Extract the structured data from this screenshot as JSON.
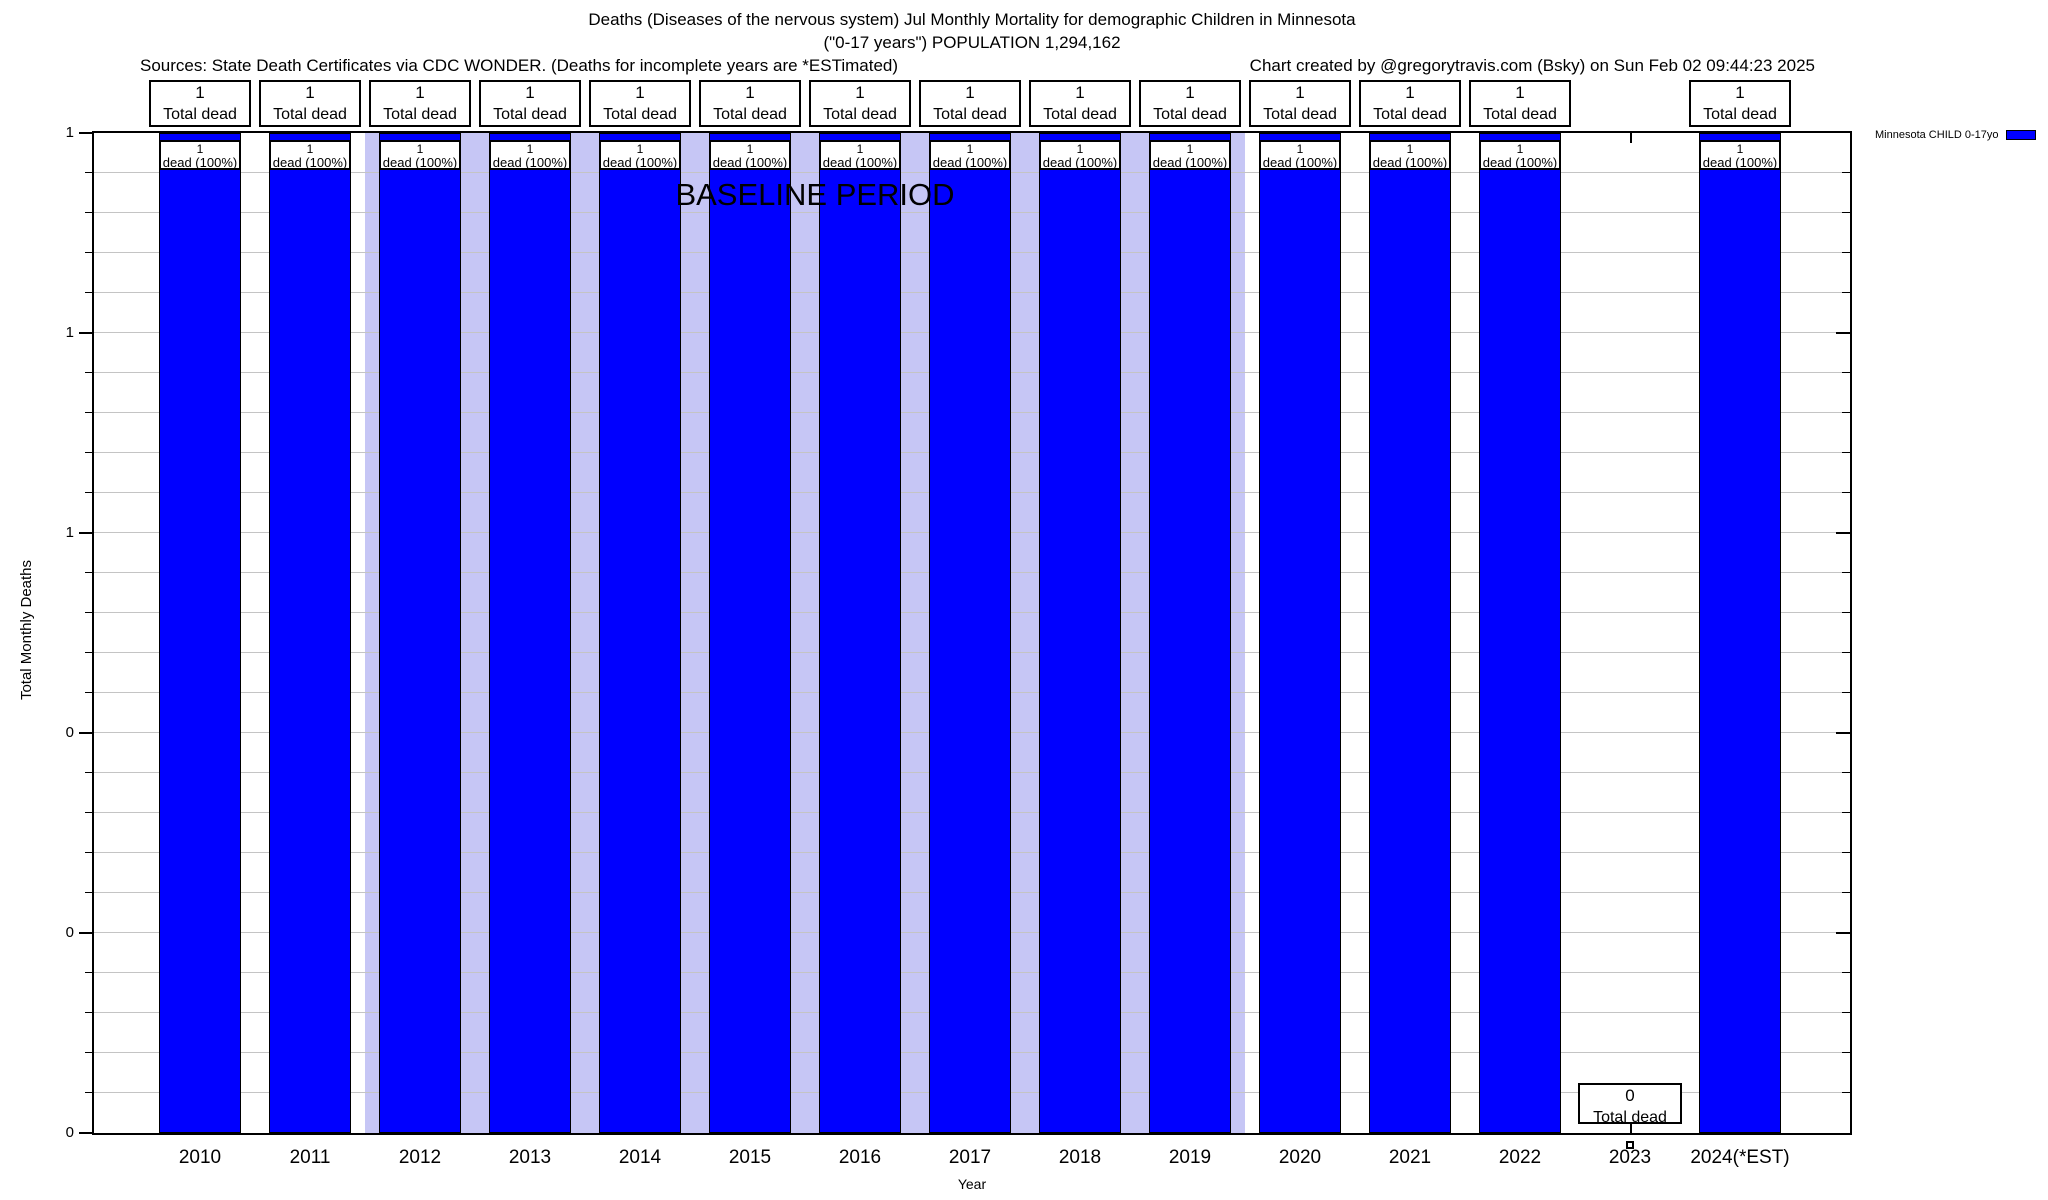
{
  "header": {
    "title_line1": "Deaths (Diseases of the nervous system) Jul Monthly Mortality for demographic Children in Minnesota",
    "title_line2": "(\"0-17 years\") POPULATION 1,294,162",
    "sources": "Sources: State Death Certificates via CDC WONDER. (Deaths for incomplete years are *ESTimated)",
    "credit": "Chart created by @gregorytravis.com (Bsky) on Sun Feb 02 09:44:23 2025"
  },
  "legend": {
    "label": "Minnesota CHILD 0-17yo",
    "swatch_color": "#0000ff"
  },
  "annotations": {
    "baseline_label": "BASELINE PERIOD"
  },
  "axes": {
    "ylabel": "Total Monthly Deaths",
    "xlabel": "Year",
    "y_major_labels_top_to_bottom": [
      "1",
      "1",
      "1",
      "0",
      "0",
      "0"
    ],
    "y_minor_per_major": 5
  },
  "chart_data": {
    "type": "bar",
    "title": "Deaths (Diseases of the nervous system) Jul Monthly Mortality for demographic Children in Minnesota",
    "subtitle": "(\"0-17 years\") POPULATION 1,294,162",
    "xlabel": "Year",
    "ylabel": "Total Monthly Deaths",
    "ylim": [
      0,
      1
    ],
    "grid": "horizontal minor gridlines on",
    "legend_position": "outside top right",
    "bar_color": "#0000ff",
    "grid_color": "#c4c4c4",
    "baseline_band_color": "#c6c6f5",
    "baseline_years": [
      "2012",
      "2013",
      "2014",
      "2015",
      "2016",
      "2017",
      "2018",
      "2019"
    ],
    "categories": [
      "2010",
      "2011",
      "2012",
      "2013",
      "2014",
      "2015",
      "2016",
      "2017",
      "2018",
      "2019",
      "2020",
      "2021",
      "2022",
      "2023",
      "2024(*EST)"
    ],
    "values": [
      1,
      1,
      1,
      1,
      1,
      1,
      1,
      1,
      1,
      1,
      1,
      1,
      1,
      0,
      1
    ],
    "bars": [
      {
        "year": "2010",
        "value": 1,
        "count_label": "1",
        "total_label": "Total dead",
        "pct_label": "dead (100%)",
        "baseline": false
      },
      {
        "year": "2011",
        "value": 1,
        "count_label": "1",
        "total_label": "Total dead",
        "pct_label": "dead (100%)",
        "baseline": false
      },
      {
        "year": "2012",
        "value": 1,
        "count_label": "1",
        "total_label": "Total dead",
        "pct_label": "dead (100%)",
        "baseline": true
      },
      {
        "year": "2013",
        "value": 1,
        "count_label": "1",
        "total_label": "Total dead",
        "pct_label": "dead (100%)",
        "baseline": true
      },
      {
        "year": "2014",
        "value": 1,
        "count_label": "1",
        "total_label": "Total dead",
        "pct_label": "dead (100%)",
        "baseline": true
      },
      {
        "year": "2015",
        "value": 1,
        "count_label": "1",
        "total_label": "Total dead",
        "pct_label": "dead (100%)",
        "baseline": true
      },
      {
        "year": "2016",
        "value": 1,
        "count_label": "1",
        "total_label": "Total dead",
        "pct_label": "dead (100%)",
        "baseline": true
      },
      {
        "year": "2017",
        "value": 1,
        "count_label": "1",
        "total_label": "Total dead",
        "pct_label": "dead (100%)",
        "baseline": true
      },
      {
        "year": "2018",
        "value": 1,
        "count_label": "1",
        "total_label": "Total dead",
        "pct_label": "dead (100%)",
        "baseline": true
      },
      {
        "year": "2019",
        "value": 1,
        "count_label": "1",
        "total_label": "Total dead",
        "pct_label": "dead (100%)",
        "baseline": true
      },
      {
        "year": "2020",
        "value": 1,
        "count_label": "1",
        "total_label": "Total dead",
        "pct_label": "dead (100%)",
        "baseline": false
      },
      {
        "year": "2021",
        "value": 1,
        "count_label": "1",
        "total_label": "Total dead",
        "pct_label": "dead (100%)",
        "baseline": false
      },
      {
        "year": "2022",
        "value": 1,
        "count_label": "1",
        "total_label": "Total dead",
        "pct_label": "dead (100%)",
        "baseline": false
      },
      {
        "year": "2023",
        "value": 0,
        "count_label": "0",
        "total_label": "Total dead",
        "pct_label": null,
        "baseline": false
      },
      {
        "year": "2024(*EST)",
        "value": 1,
        "count_label": "1",
        "total_label": "Total dead",
        "pct_label": "dead (100%)",
        "baseline": false
      }
    ]
  }
}
